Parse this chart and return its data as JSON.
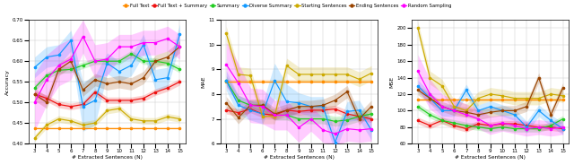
{
  "x": [
    3,
    4,
    5,
    6,
    7,
    8,
    9,
    10,
    11,
    12,
    13,
    14,
    15
  ],
  "series": {
    "Full Text": {
      "color": "#FF8C00",
      "acc": [
        0.437,
        0.437,
        0.437,
        0.437,
        0.437,
        0.437,
        0.437,
        0.437,
        0.437,
        0.437,
        0.437,
        0.437,
        0.437
      ],
      "acc_std": [
        0.003,
        0.003,
        0.003,
        0.003,
        0.003,
        0.003,
        0.003,
        0.003,
        0.003,
        0.003,
        0.003,
        0.003,
        0.003
      ],
      "mae": [
        8.5,
        8.5,
        8.5,
        8.5,
        8.5,
        8.5,
        8.5,
        8.5,
        8.5,
        8.5,
        8.5,
        8.5,
        8.5
      ],
      "mae_std": [
        0.08,
        0.08,
        0.08,
        0.08,
        0.08,
        0.08,
        0.08,
        0.08,
        0.08,
        0.08,
        0.08,
        0.08,
        0.08
      ],
      "mse": [
        113,
        113,
        113,
        113,
        113,
        113,
        113,
        113,
        113,
        113,
        113,
        113,
        113
      ],
      "mse_std": [
        2,
        2,
        2,
        2,
        2,
        2,
        2,
        2,
        2,
        2,
        2,
        2,
        2
      ]
    },
    "Full Text + Summary": {
      "color": "#EE1111",
      "acc": [
        0.52,
        0.51,
        0.495,
        0.49,
        0.495,
        0.525,
        0.505,
        0.505,
        0.505,
        0.51,
        0.525,
        0.535,
        0.55
      ],
      "acc_std": [
        0.008,
        0.008,
        0.008,
        0.008,
        0.008,
        0.008,
        0.008,
        0.008,
        0.008,
        0.008,
        0.008,
        0.008,
        0.008
      ],
      "mae": [
        7.35,
        7.25,
        7.4,
        7.2,
        7.15,
        7.35,
        7.3,
        7.35,
        7.35,
        7.4,
        7.2,
        7.1,
        7.0
      ],
      "mae_std": [
        0.15,
        0.15,
        0.15,
        0.15,
        0.15,
        0.15,
        0.15,
        0.15,
        0.15,
        0.15,
        0.15,
        0.15,
        0.15
      ],
      "mse": [
        88,
        82,
        88,
        82,
        78,
        84,
        82,
        84,
        84,
        82,
        80,
        80,
        78
      ],
      "mse_std": [
        4,
        4,
        4,
        4,
        4,
        4,
        4,
        4,
        4,
        4,
        4,
        4,
        4
      ]
    },
    "Summary": {
      "color": "#22CC22",
      "acc": [
        0.535,
        0.565,
        0.578,
        0.58,
        0.59,
        0.6,
        0.6,
        0.6,
        0.618,
        0.6,
        0.6,
        0.595,
        0.58
      ],
      "acc_std": [
        0.008,
        0.008,
        0.008,
        0.008,
        0.008,
        0.008,
        0.008,
        0.008,
        0.008,
        0.008,
        0.008,
        0.008,
        0.008
      ],
      "mae": [
        8.55,
        7.75,
        7.55,
        7.55,
        7.15,
        7.15,
        7.0,
        7.0,
        7.0,
        6.9,
        6.95,
        7.1,
        7.2
      ],
      "mae_std": [
        0.2,
        0.2,
        0.2,
        0.2,
        0.2,
        0.2,
        0.2,
        0.2,
        0.2,
        0.2,
        0.2,
        0.2,
        0.2
      ],
      "mse": [
        105,
        95,
        88,
        85,
        82,
        80,
        78,
        80,
        78,
        78,
        78,
        82,
        90
      ],
      "mse_std": [
        4,
        4,
        4,
        4,
        4,
        4,
        4,
        4,
        4,
        4,
        4,
        4,
        4
      ]
    },
    "Diverse Summary": {
      "color": "#1199FF",
      "acc": [
        0.585,
        0.61,
        0.615,
        0.65,
        0.49,
        0.505,
        0.595,
        0.575,
        0.59,
        0.64,
        0.555,
        0.56,
        0.665
      ],
      "acc_std": [
        0.025,
        0.025,
        0.025,
        0.025,
        0.06,
        0.06,
        0.025,
        0.025,
        0.025,
        0.025,
        0.025,
        0.025,
        0.025
      ],
      "mae": [
        8.55,
        7.55,
        7.35,
        7.2,
        8.55,
        7.7,
        7.65,
        7.5,
        7.5,
        6.05,
        7.3,
        7.35,
        6.55
      ],
      "mae_std": [
        0.4,
        0.4,
        0.4,
        0.4,
        0.7,
        0.7,
        0.4,
        0.4,
        0.4,
        0.4,
        0.4,
        0.4,
        0.4
      ],
      "mse": [
        130,
        115,
        100,
        100,
        125,
        100,
        105,
        100,
        95,
        80,
        100,
        88,
        78
      ],
      "mse_std": [
        7,
        7,
        7,
        7,
        7,
        7,
        7,
        7,
        7,
        7,
        7,
        7,
        7
      ]
    },
    "Starting Sentences": {
      "color": "#CCAA00",
      "acc": [
        0.413,
        0.445,
        0.46,
        0.455,
        0.445,
        0.45,
        0.48,
        0.485,
        0.46,
        0.455,
        0.455,
        0.465,
        0.46
      ],
      "acc_std": [
        0.008,
        0.008,
        0.008,
        0.008,
        0.008,
        0.008,
        0.008,
        0.008,
        0.008,
        0.008,
        0.008,
        0.008,
        0.008
      ],
      "mae": [
        10.45,
        8.8,
        8.75,
        7.1,
        7.1,
        9.15,
        8.8,
        8.8,
        8.8,
        8.8,
        8.8,
        8.6,
        8.85
      ],
      "mae_std": [
        0.3,
        0.3,
        0.3,
        0.3,
        0.3,
        0.3,
        0.3,
        0.3,
        0.3,
        0.3,
        0.3,
        0.3,
        0.3
      ],
      "mse": [
        200,
        140,
        130,
        105,
        100,
        115,
        120,
        118,
        115,
        115,
        115,
        120,
        118
      ],
      "mse_std": [
        8,
        8,
        8,
        8,
        8,
        8,
        8,
        8,
        8,
        8,
        8,
        8,
        8
      ]
    },
    "Ending Sentences": {
      "color": "#994400",
      "acc": [
        0.52,
        0.5,
        0.58,
        0.6,
        0.53,
        0.555,
        0.545,
        0.55,
        0.545,
        0.56,
        0.6,
        0.61,
        0.635
      ],
      "acc_std": [
        0.015,
        0.015,
        0.015,
        0.015,
        0.015,
        0.015,
        0.015,
        0.015,
        0.015,
        0.015,
        0.015,
        0.015,
        0.015
      ],
      "mae": [
        7.65,
        7.05,
        7.55,
        7.55,
        7.2,
        7.35,
        7.5,
        7.5,
        7.55,
        7.75,
        8.1,
        7.0,
        7.5
      ],
      "mae_std": [
        0.25,
        0.25,
        0.25,
        0.25,
        0.25,
        0.25,
        0.25,
        0.25,
        0.25,
        0.25,
        0.25,
        0.25,
        0.25
      ],
      "mse": [
        125,
        115,
        105,
        100,
        98,
        95,
        98,
        100,
        100,
        105,
        140,
        95,
        128
      ],
      "mse_std": [
        6,
        6,
        6,
        6,
        6,
        6,
        6,
        6,
        6,
        6,
        6,
        6,
        6
      ]
    },
    "Random Sampling": {
      "color": "#FF00FF",
      "acc": [
        0.5,
        0.555,
        0.59,
        0.605,
        0.66,
        0.6,
        0.605,
        0.635,
        0.635,
        0.645,
        0.645,
        0.655,
        0.635
      ],
      "acc_std": [
        0.07,
        0.06,
        0.05,
        0.05,
        0.04,
        0.04,
        0.04,
        0.03,
        0.03,
        0.03,
        0.03,
        0.03,
        0.03
      ],
      "mae": [
        9.2,
        8.45,
        7.55,
        7.5,
        7.15,
        7.15,
        6.65,
        7.0,
        6.55,
        6.4,
        6.6,
        6.55,
        6.6
      ],
      "mae_std": [
        0.9,
        0.8,
        0.7,
        0.7,
        0.6,
        0.6,
        0.6,
        0.5,
        0.5,
        0.5,
        0.5,
        0.5,
        0.5
      ],
      "mse": [
        148,
        120,
        105,
        100,
        95,
        90,
        82,
        85,
        82,
        78,
        80,
        78,
        80
      ],
      "mse_std": [
        20,
        18,
        15,
        14,
        13,
        12,
        11,
        10,
        10,
        9,
        9,
        9,
        9
      ]
    }
  },
  "acc_ylim": [
    0.4,
    0.7
  ],
  "acc_yticks": [
    0.4,
    0.45,
    0.5,
    0.55,
    0.6,
    0.65,
    0.7
  ],
  "mae_ylim": [
    6,
    11
  ],
  "mae_yticks": [
    6,
    7,
    8,
    9,
    10,
    11
  ],
  "mse_ylim": [
    60,
    210
  ],
  "mse_yticks": [
    60,
    80,
    100,
    120,
    140,
    160,
    180,
    200
  ],
  "xlabel": "# Extracted Sentences (N)",
  "acc_ylabel": "Accuracy",
  "mae_ylabel": "MAE",
  "mse_ylabel": "MSE",
  "figsize": [
    6.4,
    1.84
  ],
  "dpi": 100
}
